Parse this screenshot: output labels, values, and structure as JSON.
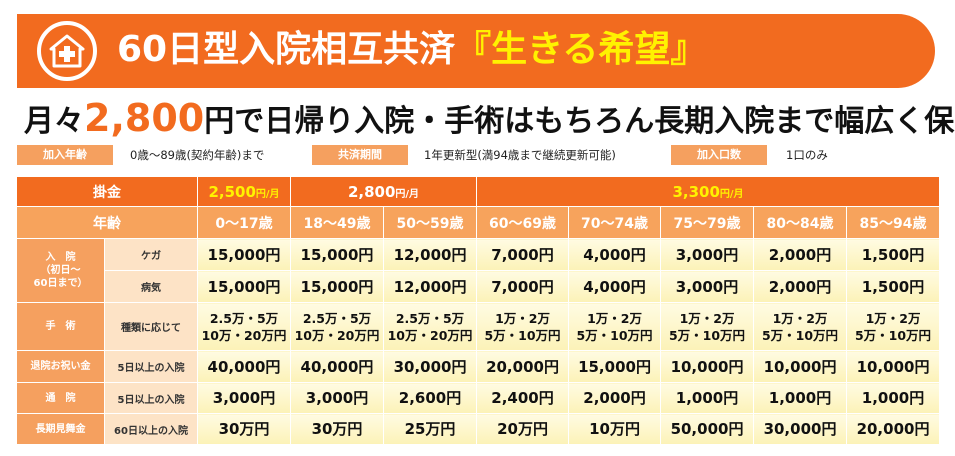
{
  "banner": {
    "title_main": "60日型入院相互共済",
    "title_accent": "『生きる希望』",
    "icon": "hospital-cross-icon"
  },
  "headline": {
    "pre": "月々",
    "price": "2,800",
    "post": "円で日帰り入院・手術はもちろん長期入院まで幅広く保障"
  },
  "info": [
    {
      "label": "加入年齢",
      "value": "0歳～89歳(契約年齢)まで"
    },
    {
      "label": "共済期間",
      "value": "1年更新型(満94歳まで継続更新可能)"
    },
    {
      "label": "加入口数",
      "value": "1口のみ"
    }
  ],
  "table": {
    "premium_label": "掛金",
    "premiums": [
      {
        "amount": "2,500",
        "unit": "円/月"
      },
      {
        "amount": "2,800",
        "unit": "円/月"
      },
      {
        "amount": "3,300",
        "unit": "円/月"
      }
    ],
    "age_label": "年齢",
    "ages": [
      "0～17歳",
      "18～49歳",
      "50～59歳",
      "60～69歳",
      "70～74歳",
      "75～79歳",
      "80～84歳",
      "85～94歳"
    ],
    "hospital_label_lines": [
      "入　院",
      "（初日～",
      "60日まで）"
    ],
    "injury_label": "ケガ",
    "injury": [
      "15,000円",
      "15,000円",
      "12,000円",
      "7,000円",
      "4,000円",
      "3,000円",
      "2,000円",
      "1,500円"
    ],
    "illness_label": "病気",
    "illness": [
      "15,000円",
      "15,000円",
      "12,000円",
      "7,000円",
      "4,000円",
      "3,000円",
      "2,000円",
      "1,500円"
    ],
    "surgery_label": "手　術",
    "surgery_sub": "種類に応じて",
    "surgery": [
      [
        "2.5万・5万",
        "10万・20万円"
      ],
      [
        "2.5万・5万",
        "10万・20万円"
      ],
      [
        "2.5万・5万",
        "10万・20万円"
      ],
      [
        "1万・2万",
        "5万・10万円"
      ],
      [
        "1万・2万",
        "5万・10万円"
      ],
      [
        "1万・2万",
        "5万・10万円"
      ],
      [
        "1万・2万",
        "5万・10万円"
      ],
      [
        "1万・2万",
        "5万・10万円"
      ]
    ],
    "discharge_label": "退院お祝い金",
    "discharge_sub": "5日以上の入院",
    "discharge": [
      "40,000円",
      "40,000円",
      "30,000円",
      "20,000円",
      "15,000円",
      "10,000円",
      "10,000円",
      "10,000円"
    ],
    "outpatient_label": "通　院",
    "outpatient_sub": "5日以上の入院",
    "outpatient": [
      "3,000円",
      "3,000円",
      "2,600円",
      "2,400円",
      "2,000円",
      "1,000円",
      "1,000円",
      "1,000円"
    ],
    "longterm_label": "長期見舞金",
    "longterm_sub": "60日以上の入院",
    "longterm": [
      "30万円",
      "30万円",
      "25万円",
      "20万円",
      "10万円",
      "50,000円",
      "30,000円",
      "20,000円"
    ]
  }
}
